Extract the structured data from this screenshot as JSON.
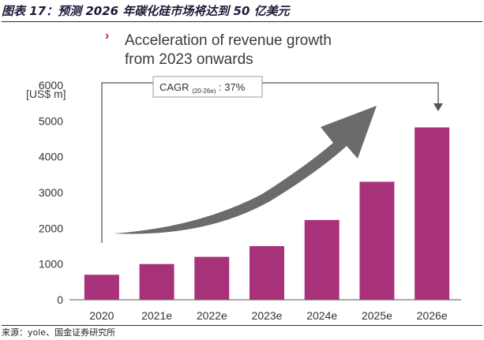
{
  "figure_title": "图表 17：预测 2026 年碳化硅市场将达到 50 亿美元",
  "headline": {
    "bullet": "›",
    "line1": "Acceleration of revenue growth",
    "line2": "from 2023 onwards"
  },
  "source": "来源：yole、国金证券研究所",
  "colors": {
    "bar": "#a8327a",
    "arrow": "#6b6b6b",
    "axis": "#555555",
    "accent": "#c2185b"
  },
  "chart_data": {
    "type": "bar",
    "units_label": "[US$ m]",
    "categories": [
      "2020",
      "2021e",
      "2022e",
      "2023e",
      "2024e",
      "2025e",
      "2026e"
    ],
    "values": [
      700,
      1000,
      1200,
      1500,
      2230,
      3300,
      4820
    ],
    "ylim": [
      0,
      6000
    ],
    "yticks": [
      "0",
      "1000",
      "2000",
      "3000",
      "4000",
      "5000",
      "6000"
    ],
    "annotation": {
      "cagr_base": "CAGR",
      "cagr_sub": "(20-26e)",
      "cagr_suffix": ": 37%"
    }
  }
}
